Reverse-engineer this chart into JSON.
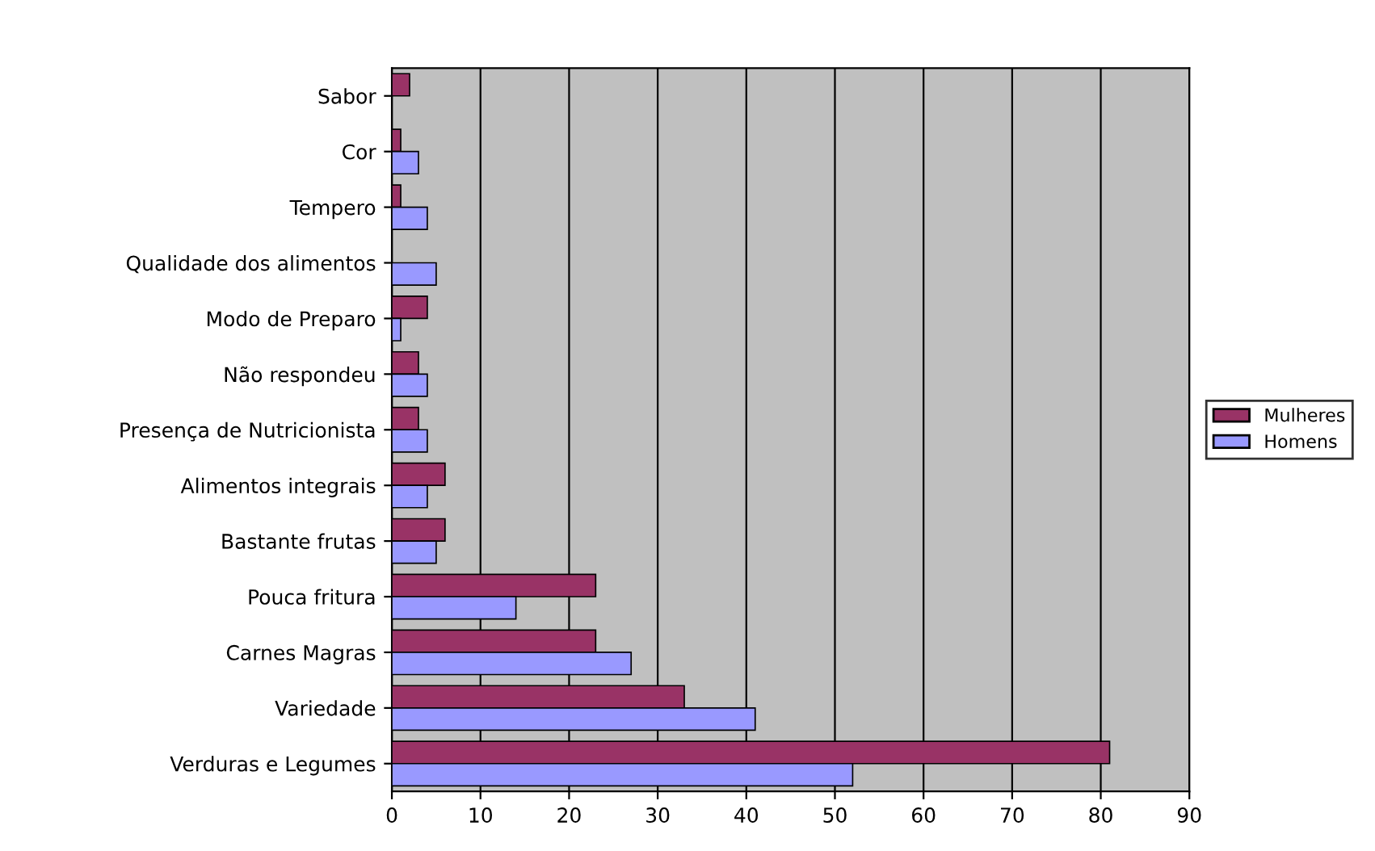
{
  "chart_data": {
    "type": "bar",
    "orientation": "horizontal",
    "categories": [
      "Sabor",
      "Cor",
      "Tempero",
      "Qualidade dos alimentos",
      "Modo de Preparo",
      "Não respondeu",
      "Presença de Nutricionista",
      "Alimentos integrais",
      "Bastante frutas",
      "Pouca fritura",
      "Carnes Magras",
      "Variedade",
      "Verduras e Legumes"
    ],
    "series": [
      {
        "name": "Mulheres",
        "color": "#993366",
        "values": [
          2,
          1,
          1,
          null,
          4,
          3,
          3,
          6,
          6,
          23,
          23,
          33,
          81
        ]
      },
      {
        "name": "Homens",
        "color": "#9999ff",
        "values": [
          null,
          3,
          4,
          5,
          1,
          4,
          4,
          4,
          5,
          14,
          27,
          41,
          52
        ]
      }
    ],
    "xlim": [
      0,
      90
    ],
    "xticks": [
      0,
      10,
      20,
      30,
      40,
      50,
      60,
      70,
      80,
      90
    ],
    "grid": "x",
    "legend": "right"
  }
}
